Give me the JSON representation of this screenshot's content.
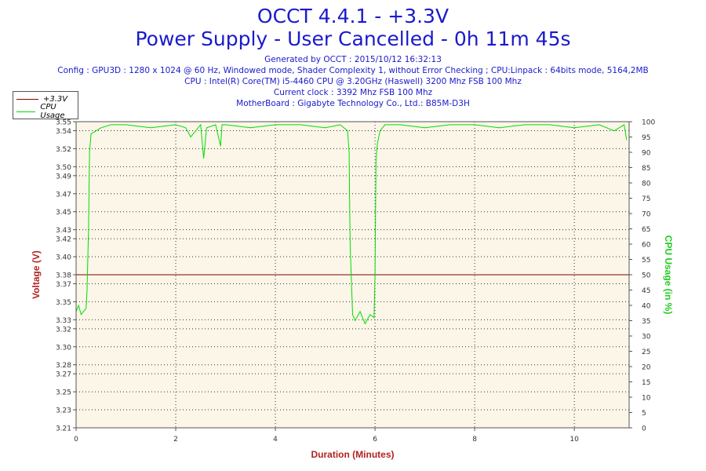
{
  "header": {
    "title": "OCCT 4.4.1 - +3.3V",
    "subtitle": "Power Supply - User Cancelled - 0h 11m 45s",
    "generated": "Generated by OCCT : 2015/10/12 16:32:13",
    "config": "Config : GPU3D : 1280 x 1024 @ 60 Hz, Windowed mode, Shader Complexity 1, without Error Checking ; CPU:Linpack : 64bits mode, 5164,2MB",
    "cpu": "CPU : Intel(R) Core(TM) i5-4460 CPU @ 3.20GHz (Haswell) 3200 Mhz FSB 100 Mhz",
    "clock": "Current clock : 3392 Mhz FSB 100 Mhz",
    "motherboard": "MotherBoard : Gigabyte Technology Co., Ltd.: B85M-D3H"
  },
  "colors": {
    "voltage": "#800000",
    "cpu": "#00dd00",
    "axis_left": "#b22222",
    "axis_right": "#22cc22",
    "plot_bg": "#fcf6e8",
    "title": "#1a1acc"
  },
  "chart_data": {
    "type": "line",
    "xlabel": "Duration (Minutes)",
    "ylabel": "Voltage (V)",
    "y2label": "CPU Usage (in %)",
    "xlim": [
      0,
      11.1
    ],
    "ylim": [
      3.21,
      3.55
    ],
    "y2lim": [
      0,
      100
    ],
    "x_ticks": [
      0,
      2,
      4,
      6,
      8,
      10
    ],
    "y_ticks": [
      "3.21",
      "3.23",
      "3.25",
      "3.27",
      "3.28",
      "3.30",
      "3.32",
      "3.33",
      "3.35",
      "3.37",
      "3.38",
      "3.40",
      "3.42",
      "3.43",
      "3.45",
      "3.47",
      "3.49",
      "3.50",
      "3.52",
      "3.54",
      "3.55"
    ],
    "y2_ticks": [
      0,
      5,
      10,
      15,
      20,
      25,
      30,
      35,
      40,
      45,
      50,
      55,
      60,
      65,
      70,
      75,
      80,
      85,
      90,
      95,
      100
    ],
    "grid": true,
    "legend_position": "top-left",
    "series": [
      {
        "name": "+3.3V",
        "axis": "left",
        "x": [
          0,
          11.1
        ],
        "y": [
          3.38,
          3.38
        ]
      },
      {
        "name": "CPU Usage",
        "axis": "right",
        "x": [
          0,
          0.05,
          0.1,
          0.15,
          0.2,
          0.22,
          0.25,
          0.27,
          0.3,
          0.4,
          0.5,
          0.7,
          1.0,
          1.5,
          2.0,
          2.2,
          2.3,
          2.5,
          2.56,
          2.62,
          2.8,
          2.9,
          2.93,
          3.0,
          3.5,
          4.0,
          4.5,
          5.0,
          5.3,
          5.45,
          5.48,
          5.5,
          5.55,
          5.6,
          5.7,
          5.8,
          5.9,
          5.98,
          6.0,
          6.02,
          6.05,
          6.1,
          6.2,
          6.5,
          7.0,
          7.5,
          8.0,
          8.5,
          9.0,
          9.5,
          10.0,
          10.5,
          10.8,
          11.0,
          11.05
        ],
        "y": [
          38,
          40,
          37,
          38,
          39,
          45,
          65,
          90,
          96,
          97,
          98,
          99,
          99,
          98,
          99,
          98,
          95,
          99,
          88,
          98,
          99,
          92,
          99,
          99,
          98,
          99,
          99,
          98,
          99,
          97,
          90,
          60,
          37,
          35,
          38,
          34,
          37,
          36,
          50,
          88,
          93,
          97,
          99,
          99,
          98,
          99,
          99,
          98,
          99,
          99,
          98,
          99,
          97,
          99,
          94
        ]
      }
    ]
  }
}
